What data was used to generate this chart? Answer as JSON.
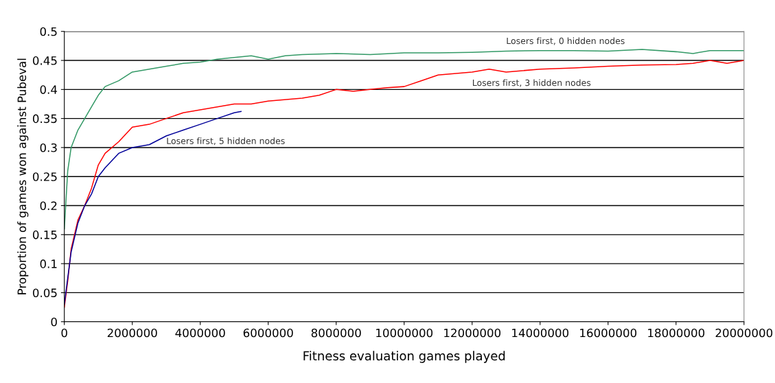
{
  "chart_data": {
    "type": "line",
    "xlabel": "Fitness evaluation games played",
    "ylabel": "Proportion of games won against Pubeval",
    "xlim": [
      0,
      20000000
    ],
    "xticks": [
      0,
      2000000,
      4000000,
      6000000,
      8000000,
      10000000,
      12000000,
      14000000,
      16000000,
      18000000,
      20000000
    ],
    "ylim": [
      0,
      0.5
    ],
    "yticks": [
      0,
      0.05,
      0.1,
      0.15,
      0.2,
      0.25,
      0.3,
      0.35,
      0.4,
      0.45,
      0.5
    ],
    "grid": "y",
    "legend": false,
    "marker": "none",
    "line_style": "solid",
    "series": [
      {
        "color": "#339966",
        "x": [
          0,
          20000,
          100000,
          200000,
          400000,
          600000,
          800000,
          1000000,
          1200000,
          1600000,
          2000000,
          2500000,
          3000000,
          3500000,
          4000000,
          4500000,
          5000000,
          5500000,
          6000000,
          6500000,
          7000000,
          8000000,
          9000000,
          10000000,
          11000000,
          12000000,
          13000000,
          14000000,
          15000000,
          16000000,
          17000000,
          18000000,
          18500000,
          19000000,
          20000000
        ],
        "values": [
          0.16,
          0.18,
          0.26,
          0.3,
          0.33,
          0.35,
          0.37,
          0.39,
          0.405,
          0.415,
          0.43,
          0.435,
          0.44,
          0.445,
          0.447,
          0.452,
          0.455,
          0.458,
          0.452,
          0.458,
          0.46,
          0.462,
          0.46,
          0.463,
          0.463,
          0.464,
          0.466,
          0.467,
          0.467,
          0.466,
          0.469,
          0.465,
          0.462,
          0.467,
          0.467
        ]
      },
      {
        "color": "#ff0000",
        "x": [
          0,
          100000,
          200000,
          400000,
          600000,
          800000,
          1000000,
          1200000,
          1600000,
          2000000,
          2500000,
          3000000,
          3500000,
          4000000,
          4500000,
          5000000,
          5500000,
          6000000,
          7000000,
          7500000,
          8000000,
          8500000,
          9000000,
          9500000,
          10000000,
          10500000,
          11000000,
          12000000,
          12500000,
          13000000,
          14000000,
          15000000,
          16000000,
          17000000,
          18000000,
          18500000,
          19000000,
          19500000,
          20000000
        ],
        "values": [
          0.025,
          0.07,
          0.125,
          0.175,
          0.2,
          0.23,
          0.27,
          0.29,
          0.31,
          0.335,
          0.34,
          0.35,
          0.36,
          0.365,
          0.37,
          0.375,
          0.375,
          0.38,
          0.385,
          0.39,
          0.4,
          0.397,
          0.4,
          0.403,
          0.405,
          0.415,
          0.425,
          0.43,
          0.435,
          0.43,
          0.435,
          0.437,
          0.44,
          0.442,
          0.443,
          0.445,
          0.45,
          0.445,
          0.45
        ]
      },
      {
        "color": "#000099",
        "x": [
          0,
          200000,
          400000,
          600000,
          800000,
          1000000,
          1200000,
          1600000,
          2000000,
          2500000,
          3000000,
          3500000,
          4000000,
          4500000,
          5000000,
          5200000
        ],
        "values": [
          0.03,
          0.12,
          0.17,
          0.2,
          0.22,
          0.25,
          0.265,
          0.29,
          0.3,
          0.305,
          0.32,
          0.33,
          0.34,
          0.35,
          0.36,
          0.362
        ]
      }
    ],
    "annotations": [
      {
        "text": "Losers first, 0 hidden nodes",
        "x": 13000000,
        "y": 0.466
      },
      {
        "text": "Losers first, 3 hidden nodes",
        "x": 12000000,
        "y": 0.43
      },
      {
        "text": "Losers first, 5 hidden nodes",
        "x": 3000000,
        "y": 0.32
      }
    ]
  }
}
